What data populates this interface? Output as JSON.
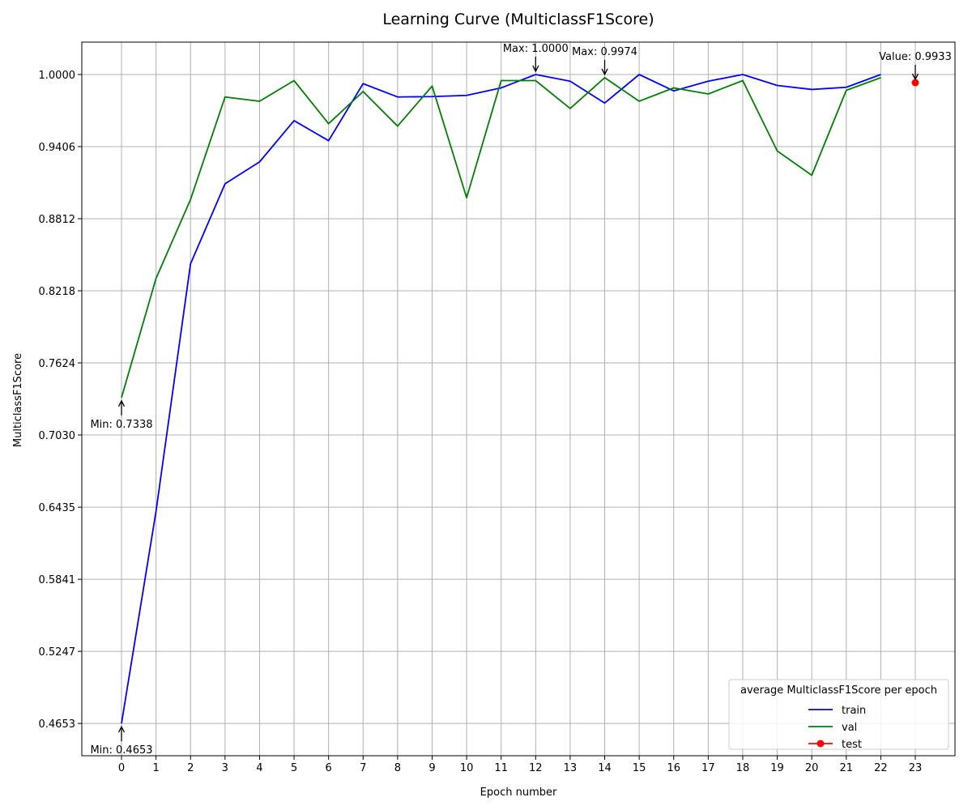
{
  "chart_data": {
    "type": "line",
    "title": "Learning Curve (MulticlassF1Score)",
    "xlabel": "Epoch number",
    "ylabel": "MulticlassF1Score",
    "x_ticks": [
      0,
      1,
      2,
      3,
      4,
      5,
      6,
      7,
      8,
      9,
      10,
      11,
      12,
      13,
      14,
      15,
      16,
      17,
      18,
      19,
      20,
      21,
      22,
      23
    ],
    "y_ticks": [
      "0.4653",
      "0.5247",
      "0.5841",
      "0.6435",
      "0.7030",
      "0.7624",
      "0.8218",
      "0.8812",
      "0.9406",
      "1.0000"
    ],
    "y_tick_values": [
      0.4653,
      0.5247,
      0.5841,
      0.6435,
      0.703,
      0.7624,
      0.8218,
      0.8812,
      0.9406,
      1.0
    ],
    "xlim": [
      -1.15,
      24.15
    ],
    "ylim": [
      0.4387,
      1.0267
    ],
    "grid": true,
    "legend": {
      "title": "average MulticlassF1Score per epoch",
      "placement": "lower-right"
    },
    "series": [
      {
        "name": "train",
        "color": "#0000ff",
        "marker": "none",
        "x": [
          0,
          1,
          2,
          3,
          4,
          5,
          6,
          7,
          8,
          9,
          10,
          11,
          12,
          13,
          14,
          15,
          16,
          17,
          18,
          19,
          20,
          21,
          22
        ],
        "values": [
          0.4653,
          0.64,
          0.844,
          0.91,
          0.928,
          0.962,
          0.9455,
          0.9925,
          0.9815,
          0.9818,
          0.9828,
          0.989,
          1.0,
          0.9945,
          0.9765,
          1.0,
          0.9865,
          0.9945,
          1.0,
          0.991,
          0.9877,
          0.9895,
          1.0
        ]
      },
      {
        "name": "val",
        "color": "#008000",
        "marker": "none",
        "x": [
          0,
          1,
          2,
          3,
          4,
          5,
          6,
          7,
          8,
          9,
          10,
          11,
          12,
          13,
          14,
          15,
          16,
          17,
          18,
          19,
          20,
          21,
          22
        ],
        "values": [
          0.7338,
          0.832,
          0.897,
          0.9815,
          0.978,
          0.995,
          0.9595,
          0.986,
          0.9575,
          0.9905,
          0.8985,
          0.995,
          0.995,
          0.972,
          0.9974,
          0.978,
          0.989,
          0.984,
          0.995,
          0.937,
          0.917,
          0.987,
          0.9974
        ]
      },
      {
        "name": "test",
        "color": "#ff0000",
        "marker": "circle",
        "x": [
          23
        ],
        "values": [
          0.9933
        ]
      }
    ],
    "annotations": [
      {
        "text": "Min: 0.4653",
        "x": 0,
        "y": 0.4653,
        "placement": "below"
      },
      {
        "text": "Min: 0.7338",
        "x": 0,
        "y": 0.7338,
        "placement": "below"
      },
      {
        "text": "Max: 1.0000",
        "x": 12,
        "y": 1.0,
        "placement": "above"
      },
      {
        "text": "Max: 0.9974",
        "x": 14,
        "y": 0.9974,
        "placement": "above"
      },
      {
        "text": "Value: 0.9933",
        "x": 23,
        "y": 0.9933,
        "placement": "above"
      }
    ]
  }
}
